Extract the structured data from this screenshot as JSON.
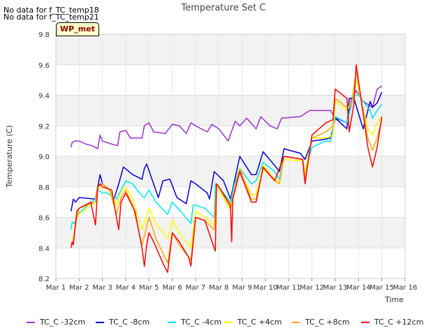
{
  "notes": [
    "No data for f_TC_temp18",
    "No data for f_TC_temp21"
  ],
  "site_label": "WP_met",
  "chart_data": {
    "type": "line",
    "title": "Temperature Set C",
    "xlabel": "Time",
    "ylabel": "Temperature (C)",
    "xlim": [
      1,
      16
    ],
    "ylim": [
      8.2,
      9.8
    ],
    "x_ticks": [
      1,
      2,
      3,
      4,
      5,
      6,
      7,
      8,
      9,
      10,
      11,
      12,
      13,
      14,
      15,
      16
    ],
    "x_tick_labels": [
      "Mar 1",
      "Mar 2",
      "Mar 3",
      "Mar 4",
      "Mar 5",
      "Mar 6",
      "Mar 7",
      "Mar 8",
      "Mar 9",
      "Mar 10",
      "Mar 11",
      "Mar 12",
      "Mar 13",
      "Mar 14",
      "Mar 15",
      "Mar 16"
    ],
    "y_ticks": [
      8.2,
      8.4,
      8.6,
      8.8,
      9.0,
      9.2,
      9.4,
      9.6,
      9.8
    ],
    "y_tick_labels": [
      "8.2",
      "8.4",
      "8.6",
      "8.8",
      "9.0",
      "9.2",
      "9.4",
      "9.6",
      "9.8"
    ],
    "grid": true,
    "legend_position": "bottom",
    "series": [
      {
        "name": "TC_C -32cm",
        "color": "#9932cc",
        "x": [
          1.65,
          1.7,
          1.8,
          2.0,
          2.3,
          2.55,
          2.8,
          2.9,
          3.0,
          3.4,
          3.65,
          3.75,
          4.0,
          4.2,
          4.7,
          4.8,
          5.0,
          5.2,
          5.7,
          6.0,
          6.3,
          6.6,
          6.8,
          7.0,
          7.5,
          7.7,
          8.0,
          8.4,
          8.7,
          8.9,
          9.2,
          9.6,
          9.8,
          10.2,
          10.5,
          10.7,
          11.5,
          11.8,
          11.9,
          12.5,
          12.8,
          13.0,
          13.5,
          13.7,
          13.9,
          14.2,
          14.6,
          14.8,
          15.0
        ],
        "y": [
          9.06,
          9.09,
          9.1,
          9.1,
          9.08,
          9.07,
          9.05,
          9.14,
          9.1,
          9.08,
          9.07,
          9.16,
          9.17,
          9.12,
          9.12,
          9.2,
          9.22,
          9.16,
          9.15,
          9.21,
          9.2,
          9.15,
          9.22,
          9.2,
          9.16,
          9.21,
          9.18,
          9.1,
          9.23,
          9.2,
          9.25,
          9.18,
          9.26,
          9.2,
          9.18,
          9.25,
          9.26,
          9.29,
          9.3,
          9.3,
          9.3,
          9.25,
          9.22,
          9.38,
          9.43,
          9.36,
          9.32,
          9.44,
          9.46
        ]
      },
      {
        "name": "TC_C -8cm",
        "color": "#0000cd",
        "x": [
          1.65,
          1.75,
          1.85,
          2.0,
          2.7,
          2.9,
          3.0,
          3.3,
          3.5,
          3.7,
          3.9,
          4.3,
          4.7,
          4.8,
          4.9,
          5.4,
          5.6,
          5.9,
          6.2,
          6.6,
          6.8,
          7.0,
          7.5,
          7.6,
          7.8,
          8.2,
          8.5,
          8.7,
          8.9,
          9.4,
          9.6,
          9.9,
          10.4,
          10.6,
          10.8,
          11.5,
          11.7,
          12.0,
          12.5,
          12.8,
          13.0,
          13.5,
          13.6,
          13.8,
          14.2,
          14.5,
          14.6,
          14.8,
          15.0
        ],
        "y": [
          8.64,
          8.72,
          8.7,
          8.73,
          8.72,
          8.88,
          8.82,
          8.78,
          8.72,
          8.82,
          8.93,
          8.88,
          8.85,
          8.92,
          8.95,
          8.73,
          8.84,
          8.85,
          8.73,
          8.69,
          8.84,
          8.82,
          8.76,
          8.72,
          8.9,
          8.84,
          8.72,
          8.86,
          9.0,
          8.88,
          8.88,
          9.03,
          8.94,
          8.9,
          9.05,
          9.02,
          8.98,
          9.1,
          9.11,
          9.12,
          9.25,
          9.18,
          9.38,
          9.38,
          9.18,
          9.36,
          9.32,
          9.35,
          9.42
        ]
      },
      {
        "name": "TC_C -4cm",
        "color": "#00e5ee",
        "x": [
          1.65,
          1.7,
          1.8,
          2.0,
          2.7,
          2.8,
          3.0,
          3.2,
          3.6,
          3.8,
          4.0,
          4.3,
          4.7,
          4.8,
          5.0,
          5.3,
          5.8,
          6.0,
          6.3,
          6.8,
          6.9,
          7.0,
          7.4,
          7.8,
          7.85,
          8.0,
          8.5,
          8.65,
          8.9,
          9.4,
          9.6,
          9.9,
          10.4,
          10.6,
          10.8,
          11.6,
          11.7,
          12.0,
          12.6,
          12.8,
          13.0,
          13.5,
          13.8,
          14.0,
          14.5,
          14.6,
          14.8,
          15.0
        ],
        "y": [
          8.52,
          8.57,
          8.56,
          8.63,
          8.72,
          8.78,
          8.76,
          8.76,
          8.72,
          8.78,
          8.84,
          8.82,
          8.74,
          8.73,
          8.78,
          8.7,
          8.62,
          8.7,
          8.65,
          8.56,
          8.68,
          8.68,
          8.66,
          8.6,
          8.82,
          8.8,
          8.7,
          8.81,
          8.92,
          8.82,
          8.84,
          8.96,
          8.9,
          8.85,
          9.0,
          8.98,
          8.9,
          9.06,
          9.1,
          9.1,
          9.26,
          9.22,
          9.4,
          9.4,
          9.3,
          9.25,
          9.3,
          9.34
        ]
      },
      {
        "name": "TC_C +4cm",
        "color": "#ffff00",
        "x": [
          1.65,
          1.75,
          1.9,
          2.0,
          2.7,
          2.8,
          3.0,
          3.3,
          3.6,
          3.8,
          4.0,
          4.3,
          4.7,
          4.8,
          5.0,
          5.3,
          5.8,
          6.0,
          6.3,
          6.8,
          7.0,
          7.4,
          7.8,
          7.9,
          8.0,
          8.5,
          8.6,
          8.9,
          9.4,
          9.6,
          9.9,
          10.4,
          10.6,
          10.8,
          11.6,
          11.7,
          12.0,
          12.6,
          12.9,
          13.0,
          13.5,
          13.7,
          13.9,
          14.4,
          14.6,
          14.8,
          15.0
        ],
        "y": [
          8.47,
          8.46,
          8.6,
          8.62,
          8.7,
          8.78,
          8.8,
          8.78,
          8.68,
          8.77,
          8.8,
          8.72,
          8.52,
          8.56,
          8.66,
          8.56,
          8.46,
          8.58,
          8.5,
          8.4,
          8.64,
          8.6,
          8.55,
          8.82,
          8.78,
          8.65,
          8.72,
          8.9,
          8.75,
          8.75,
          8.94,
          8.85,
          8.83,
          8.98,
          8.97,
          8.9,
          9.12,
          9.12,
          9.14,
          9.36,
          9.3,
          9.35,
          9.5,
          9.18,
          9.14,
          9.22,
          9.26
        ]
      },
      {
        "name": "TC_C +8cm",
        "color": "#ffa500",
        "x": [
          1.65,
          1.75,
          1.9,
          2.0,
          2.7,
          2.8,
          3.0,
          3.3,
          3.6,
          3.8,
          4.0,
          4.3,
          4.7,
          4.8,
          5.0,
          5.3,
          5.8,
          6.0,
          6.3,
          6.8,
          7.0,
          7.4,
          7.8,
          7.9,
          8.0,
          8.5,
          8.6,
          8.9,
          9.4,
          9.6,
          9.9,
          10.4,
          10.6,
          10.8,
          11.6,
          11.7,
          12.0,
          12.6,
          12.9,
          13.0,
          13.5,
          13.7,
          13.9,
          14.4,
          14.6,
          14.8,
          15.0
        ],
        "y": [
          8.43,
          8.44,
          8.6,
          8.66,
          8.7,
          8.8,
          8.82,
          8.78,
          8.62,
          8.73,
          8.78,
          8.68,
          8.42,
          8.48,
          8.6,
          8.46,
          8.3,
          8.5,
          8.42,
          8.32,
          8.6,
          8.58,
          8.52,
          8.82,
          8.8,
          8.66,
          8.74,
          8.92,
          8.72,
          8.72,
          8.92,
          8.84,
          8.82,
          9.0,
          8.98,
          8.86,
          9.12,
          9.16,
          9.2,
          9.38,
          9.32,
          9.34,
          9.56,
          9.12,
          9.04,
          9.12,
          9.24
        ]
      },
      {
        "name": "TC_C +12cm",
        "color": "#ff0000",
        "x": [
          1.65,
          1.7,
          1.75,
          1.8,
          1.9,
          2.0,
          2.5,
          2.7,
          2.8,
          2.9,
          3.0,
          3.4,
          3.6,
          3.7,
          3.8,
          4.0,
          4.4,
          4.7,
          4.8,
          4.9,
          5.0,
          5.2,
          5.6,
          5.8,
          6.0,
          6.3,
          6.7,
          6.8,
          7.0,
          7.4,
          7.8,
          7.85,
          7.9,
          8.0,
          8.5,
          8.55,
          8.6,
          8.9,
          9.4,
          9.6,
          9.9,
          10.4,
          10.8,
          11.6,
          11.7,
          12.0,
          12.6,
          12.9,
          13.0,
          13.5,
          13.6,
          13.8,
          13.9,
          14.4,
          14.6,
          14.8,
          15.0
        ],
        "y": [
          8.4,
          8.44,
          8.42,
          8.5,
          8.64,
          8.66,
          8.7,
          8.55,
          8.8,
          8.82,
          8.8,
          8.78,
          8.6,
          8.52,
          8.7,
          8.76,
          8.64,
          8.4,
          8.28,
          8.42,
          8.5,
          8.44,
          8.3,
          8.24,
          8.5,
          8.44,
          8.34,
          8.28,
          8.6,
          8.58,
          8.4,
          8.38,
          8.82,
          8.8,
          8.68,
          8.44,
          8.72,
          8.9,
          8.7,
          8.7,
          8.93,
          8.84,
          9.0,
          8.98,
          8.82,
          9.14,
          9.22,
          9.24,
          9.44,
          9.38,
          9.16,
          9.34,
          9.6,
          9.06,
          8.93,
          9.06,
          9.26
        ]
      }
    ]
  }
}
